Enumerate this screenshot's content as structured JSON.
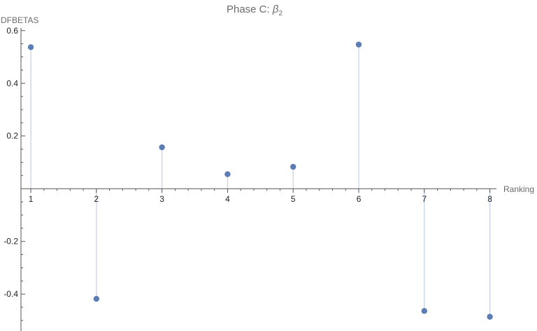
{
  "chart_data": {
    "type": "scatter",
    "style": "stem",
    "title": {
      "prefix": "Phase C: ",
      "symbol": "β",
      "subscript": "2"
    },
    "xlabel": "Ranking",
    "ylabel": "DFBETAS",
    "xlim": [
      0.85,
      8.1
    ],
    "ylim": [
      -0.54,
      0.61
    ],
    "x_ticks": [
      1,
      2,
      3,
      4,
      5,
      6,
      7,
      8
    ],
    "x_tick_labels": [
      "1",
      "2",
      "3",
      "4",
      "5",
      "6",
      "7",
      "8"
    ],
    "y_ticks": [
      -0.4,
      -0.2,
      0.2,
      0.4,
      0.6
    ],
    "y_tick_labels": [
      "-0.4",
      "-0.2",
      "0.2",
      "0.4",
      "0.6"
    ],
    "x": [
      1,
      2,
      3,
      4,
      5,
      6,
      7,
      8
    ],
    "y": [
      0.537,
      -0.418,
      0.157,
      0.055,
      0.083,
      0.547,
      -0.464,
      -0.486
    ],
    "marker_color": "#5b7db4",
    "stem_color": "#c5d4e8",
    "grid": false
  }
}
